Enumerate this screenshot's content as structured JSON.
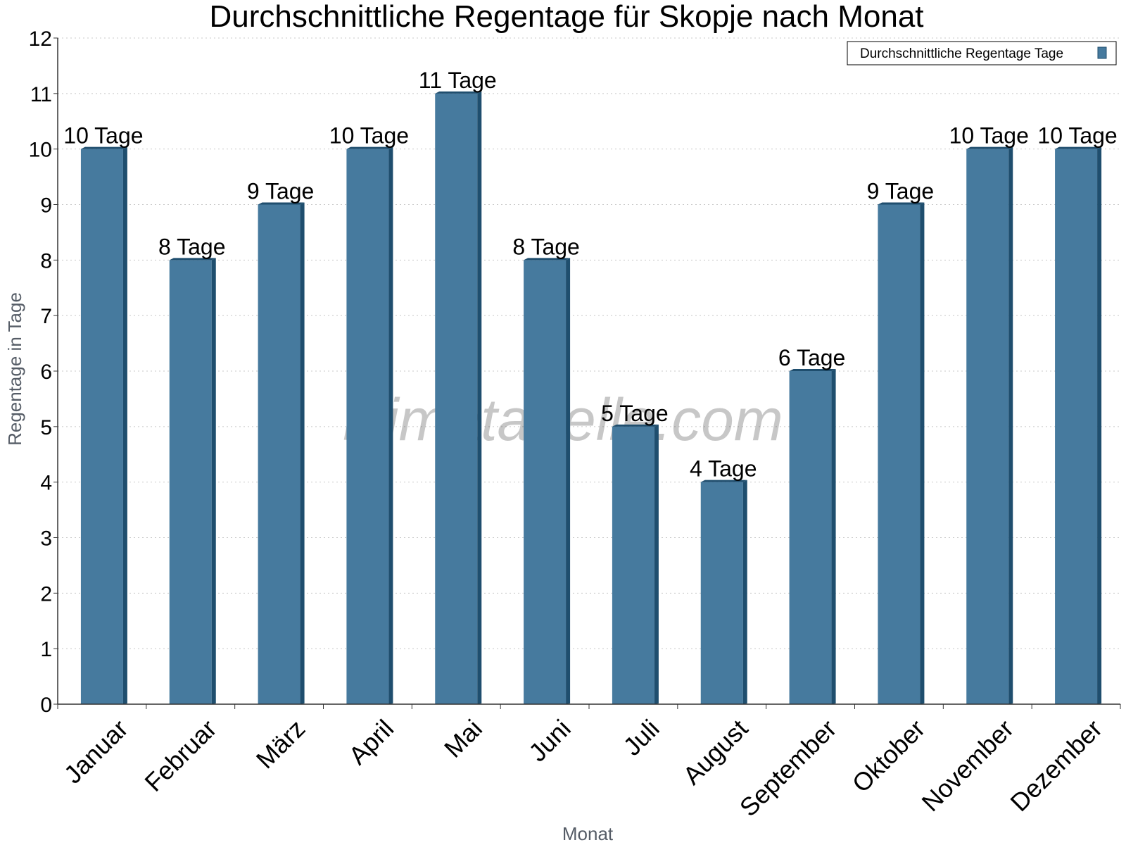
{
  "chart_data": {
    "type": "bar",
    "title": "Durchschnittliche Regentage für Skopje nach Monat",
    "xlabel": "Monat",
    "ylabel": "Regentage in Tage",
    "ylim": [
      0,
      12
    ],
    "yticks": [
      0,
      1,
      2,
      3,
      4,
      5,
      6,
      7,
      8,
      9,
      10,
      11,
      12
    ],
    "grid": true,
    "legend_position": "top-right",
    "categories": [
      "Januar",
      "Februar",
      "März",
      "April",
      "Mai",
      "Juni",
      "Juli",
      "August",
      "September",
      "Oktober",
      "November",
      "Dezember"
    ],
    "series": [
      {
        "name": "Durchschnittliche Regentage Tage",
        "values": [
          10,
          8,
          9,
          10,
          11,
          8,
          5,
          4,
          6,
          9,
          10,
          10
        ],
        "labels": [
          "10 Tage",
          "8 Tage",
          "9 Tage",
          "10 Tage",
          "11 Tage",
          "8 Tage",
          "5 Tage",
          "4 Tage",
          "6 Tage",
          "9 Tage",
          "10 Tage",
          "10 Tage"
        ],
        "color": "#467a9e",
        "side_color": "#1f4e6e"
      }
    ]
  },
  "watermark": "klimatabelle.com"
}
